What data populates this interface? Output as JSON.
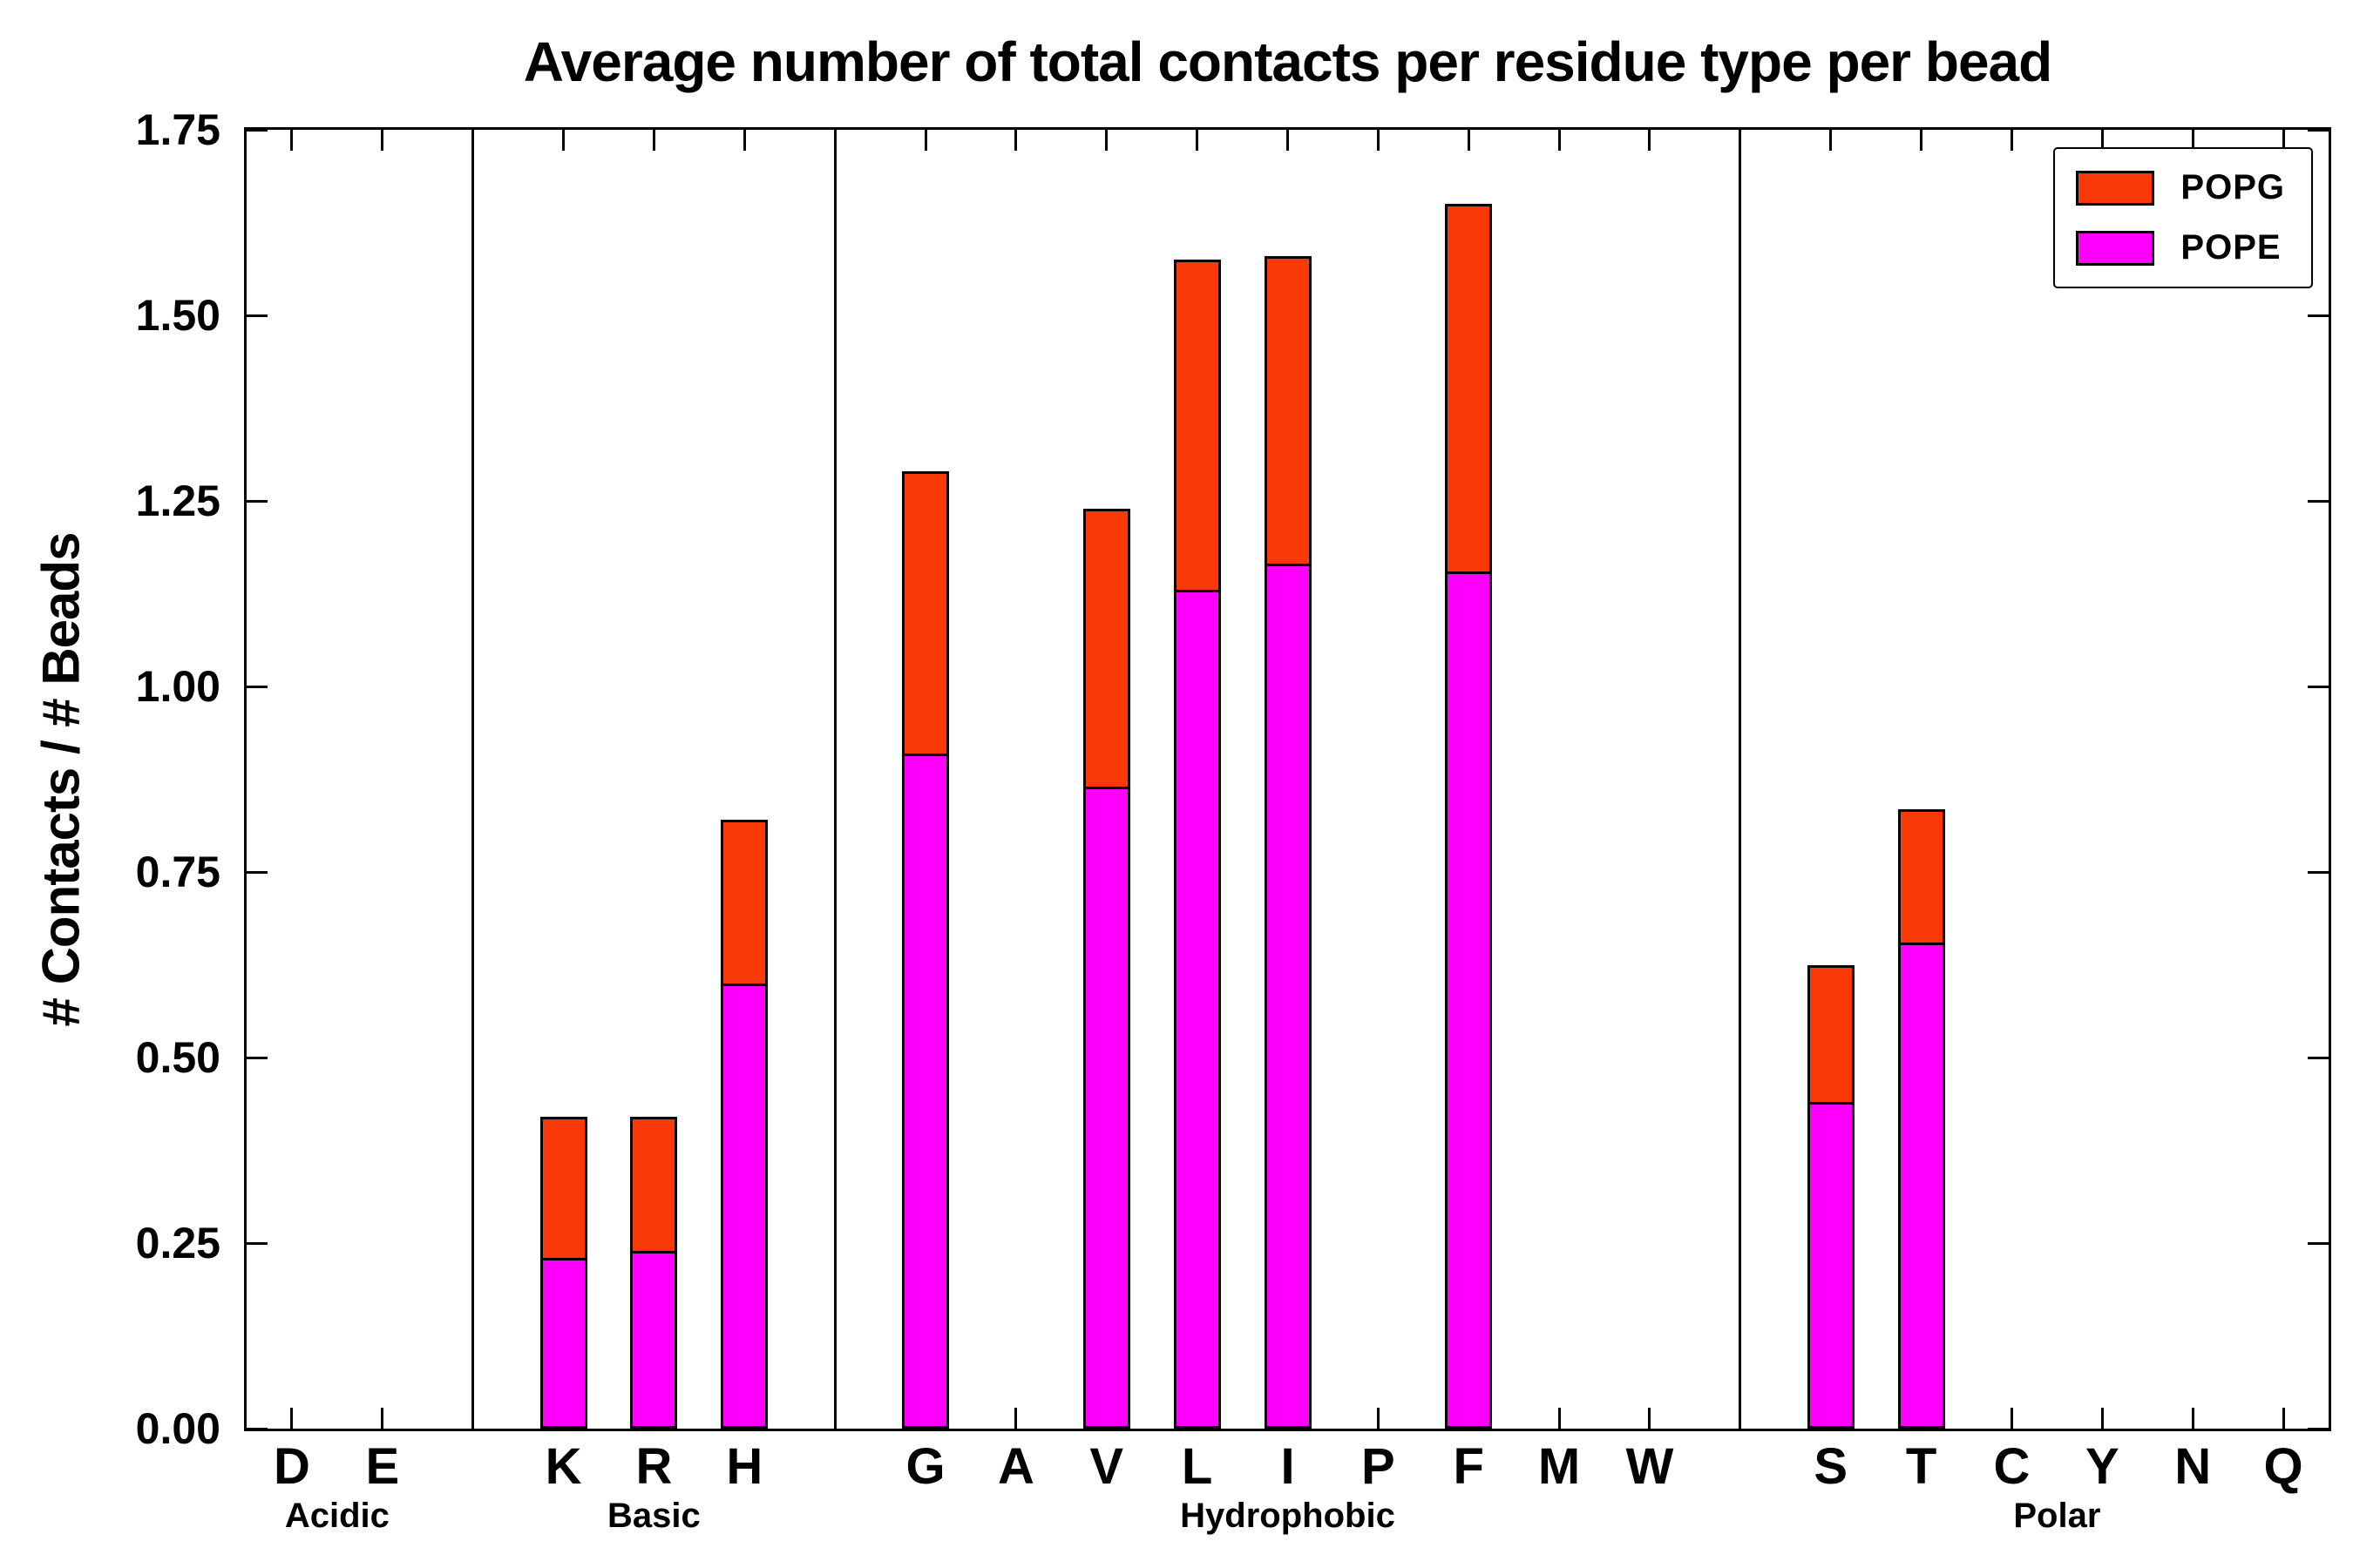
{
  "chart_data": {
    "type": "bar",
    "stacked": true,
    "title": "Average number of total contacts per residue type per bead",
    "ylabel": "# Contacts / # Beads",
    "xlabel": "",
    "ylim": [
      0,
      1.75
    ],
    "yticks": [
      "0.00",
      "0.25",
      "0.50",
      "0.75",
      "1.00",
      "1.25",
      "1.50",
      "1.75"
    ],
    "grid": false,
    "legend_position": "upper right",
    "axis_color": "#000000",
    "background": "#FFFFFF",
    "groups": [
      {
        "label": "Acidic",
        "categories": [
          "D",
          "E"
        ]
      },
      {
        "label": "Basic",
        "categories": [
          "K",
          "R",
          "H"
        ]
      },
      {
        "label": "Hydrophobic",
        "categories": [
          "G",
          "A",
          "V",
          "L",
          "I",
          "P",
          "F",
          "M",
          "W"
        ]
      },
      {
        "label": "Polar",
        "categories": [
          "S",
          "T",
          "C",
          "Y",
          "N",
          "Q"
        ]
      }
    ],
    "categories": [
      "D",
      "E",
      "K",
      "R",
      "H",
      "G",
      "A",
      "V",
      "L",
      "I",
      "P",
      "F",
      "M",
      "W",
      "S",
      "T",
      "C",
      "Y",
      "N",
      "Q"
    ],
    "series": [
      {
        "name": "POPE",
        "color": "#FF00FF",
        "values": [
          0,
          0,
          0.23,
          0.24,
          0.6,
          0.91,
          0,
          0.865,
          1.13,
          1.165,
          0,
          1.155,
          0,
          0,
          0.44,
          0.655,
          0,
          0,
          0,
          0
        ]
      },
      {
        "name": "POPG",
        "color": "#F93908",
        "values": [
          0,
          0,
          0.19,
          0.18,
          0.22,
          0.38,
          0,
          0.375,
          0.445,
          0.415,
          0,
          0.495,
          0,
          0,
          0.185,
          0.18,
          0,
          0,
          0,
          0
        ]
      }
    ],
    "legend": [
      {
        "label": "POPG",
        "series": "POPG"
      },
      {
        "label": "POPE",
        "series": "POPE"
      }
    ]
  }
}
